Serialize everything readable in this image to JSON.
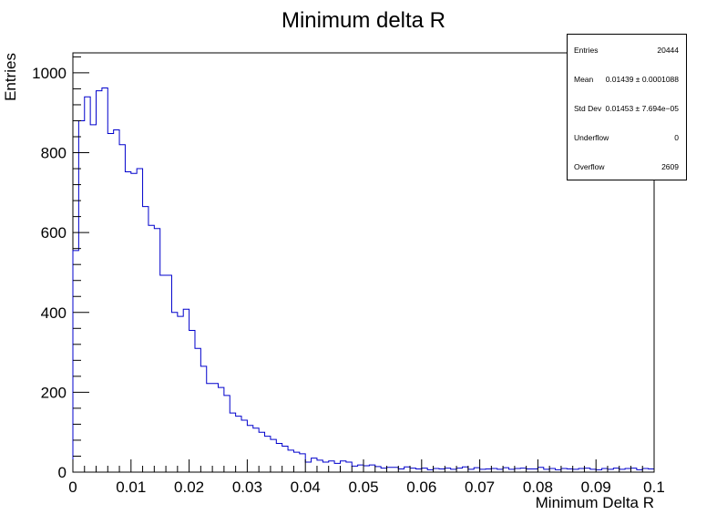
{
  "chart_data": {
    "type": "histogram",
    "title": "Minimum delta R",
    "xlabel": "Minimum Delta R",
    "ylabel": "Entries",
    "xlim": [
      0,
      0.1
    ],
    "ylim": [
      0,
      1050
    ],
    "bin_width": 0.001,
    "xticks": [
      "0",
      "0.01",
      "0.02",
      "0.03",
      "0.04",
      "0.05",
      "0.06",
      "0.07",
      "0.08",
      "0.09",
      "0.1"
    ],
    "yticks": [
      "0",
      "200",
      "400",
      "600",
      "800",
      "1000"
    ],
    "line_color": "#0000cc",
    "values": [
      555,
      880,
      940,
      870,
      955,
      962,
      848,
      857,
      820,
      752,
      748,
      760,
      665,
      618,
      610,
      493,
      493,
      400,
      390,
      408,
      355,
      310,
      265,
      222,
      222,
      212,
      192,
      148,
      140,
      130,
      117,
      110,
      100,
      90,
      82,
      72,
      65,
      55,
      50,
      46,
      25,
      35,
      30,
      25,
      28,
      22,
      28,
      25,
      15,
      18,
      16,
      18,
      14,
      10,
      12,
      12,
      8,
      13,
      10,
      8,
      10,
      6,
      9,
      8,
      10,
      7,
      10,
      13,
      7,
      11,
      7,
      8,
      9,
      7,
      11,
      7,
      9,
      10,
      8,
      8,
      12,
      7,
      9,
      6,
      9,
      8,
      7,
      9,
      10,
      7,
      6,
      9,
      7,
      10,
      7,
      9,
      10,
      6,
      9,
      8
    ]
  },
  "stats": {
    "rows": [
      {
        "label": "Entries",
        "value": "20444"
      },
      {
        "label": "Mean",
        "value": "0.01439 ± 0.0001088"
      },
      {
        "label": "Std Dev",
        "value": "0.01453 ± 7.694e−05"
      },
      {
        "label": "Underflow",
        "value": "0"
      },
      {
        "label": "Overflow",
        "value": "2609"
      }
    ]
  }
}
